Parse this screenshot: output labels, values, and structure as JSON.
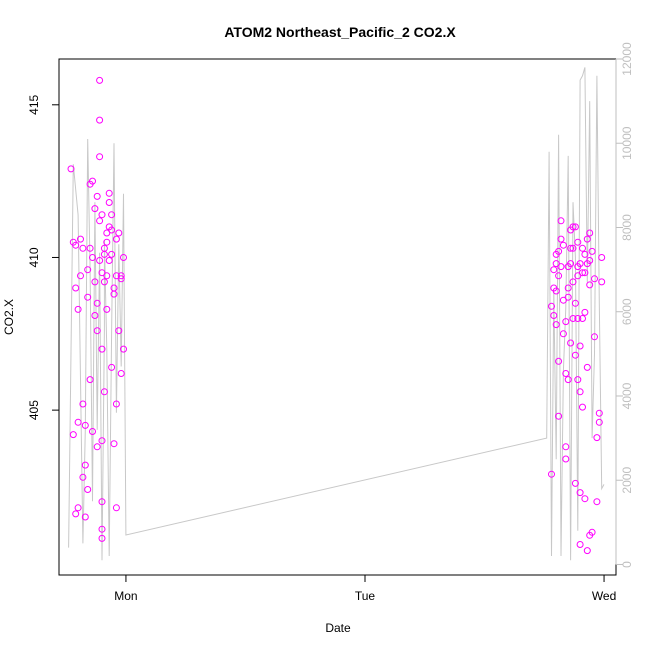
{
  "chart_data": {
    "type": "scatter",
    "title": "ATOM2 Northeast_Pacific_2 CO2.X",
    "xlabel": "Date",
    "ylabel": "CO2.X",
    "x_ticks": [
      "Mon",
      "Tue",
      "Wed"
    ],
    "x_tick_values": [
      1.0,
      2.0,
      3.0
    ],
    "xlim": [
      0.72,
      3.05
    ],
    "ylim": [
      399.6,
      416.5
    ],
    "y_ticks": [
      405,
      410,
      415
    ],
    "y2lim": [
      -250,
      12000
    ],
    "y2_ticks": [
      0,
      2000,
      4000,
      6000,
      8000,
      10000,
      12000
    ],
    "grid": false,
    "legend": "none",
    "colors": {
      "points": "#ff00ff",
      "line": "#c8c8c8"
    },
    "series": [
      {
        "axis": "left",
        "style": "points",
        "x": [
          0.77,
          0.78,
          0.78,
          0.79,
          0.79,
          0.79,
          0.8,
          0.8,
          0.8,
          0.81,
          0.81,
          0.82,
          0.82,
          0.82,
          0.83,
          0.83,
          0.83,
          0.84,
          0.84,
          0.84,
          0.85,
          0.85,
          0.85,
          0.86,
          0.86,
          0.86,
          0.87,
          0.87,
          0.87,
          0.88,
          0.88,
          0.88,
          0.88,
          0.89,
          0.89,
          0.89,
          0.89,
          0.89,
          0.9,
          0.9,
          0.9,
          0.9,
          0.9,
          0.9,
          0.9,
          0.91,
          0.91,
          0.91,
          0.91,
          0.92,
          0.92,
          0.92,
          0.92,
          0.93,
          0.93,
          0.93,
          0.93,
          0.94,
          0.94,
          0.94,
          0.94,
          0.95,
          0.95,
          0.95,
          0.96,
          0.96,
          0.96,
          0.96,
          0.97,
          0.97,
          0.98,
          0.98,
          0.98,
          0.99,
          0.99,
          2.78,
          2.78,
          2.79,
          2.79,
          2.79,
          2.8,
          2.8,
          2.8,
          2.8,
          2.81,
          2.81,
          2.81,
          2.81,
          2.82,
          2.82,
          2.82,
          2.83,
          2.83,
          2.83,
          2.84,
          2.84,
          2.84,
          2.84,
          2.85,
          2.85,
          2.85,
          2.85,
          2.86,
          2.86,
          2.86,
          2.86,
          2.87,
          2.87,
          2.87,
          2.87,
          2.88,
          2.88,
          2.88,
          2.88,
          2.89,
          2.89,
          2.89,
          2.89,
          2.89,
          2.9,
          2.9,
          2.9,
          2.9,
          2.9,
          2.91,
          2.91,
          2.91,
          2.91,
          2.92,
          2.92,
          2.92,
          2.92,
          2.93,
          2.93,
          2.93,
          2.93,
          2.94,
          2.94,
          2.94,
          2.94,
          2.95,
          2.95,
          2.96,
          2.96,
          2.97,
          2.97,
          2.98,
          2.98,
          2.99,
          2.99
        ],
        "y": [
          412.9,
          410.5,
          404.2,
          401.6,
          409.0,
          410.4,
          408.3,
          401.8,
          404.6,
          409.4,
          410.6,
          410.3,
          405.2,
          402.8,
          404.5,
          401.5,
          403.2,
          409.6,
          408.7,
          402.4,
          412.4,
          410.3,
          406.0,
          404.3,
          410.0,
          412.5,
          411.6,
          409.2,
          408.1,
          408.5,
          403.8,
          412.0,
          407.6,
          409.9,
          413.3,
          414.5,
          415.8,
          411.2,
          407.0,
          404.0,
          402.0,
          401.1,
          400.8,
          409.5,
          411.4,
          410.1,
          409.2,
          410.3,
          405.6,
          410.5,
          409.4,
          408.3,
          410.8,
          411.0,
          412.1,
          411.8,
          409.9,
          410.9,
          410.1,
          411.4,
          406.4,
          409.0,
          408.8,
          403.9,
          410.6,
          409.4,
          405.2,
          401.8,
          410.8,
          407.6,
          409.3,
          406.2,
          409.4,
          410.0,
          407.0,
          408.4,
          402.9,
          409.6,
          409.0,
          408.1,
          409.8,
          410.1,
          408.9,
          407.8,
          410.2,
          409.4,
          406.6,
          404.8,
          411.2,
          410.6,
          409.7,
          410.4,
          408.6,
          407.5,
          407.9,
          406.2,
          403.8,
          403.4,
          409.7,
          409.0,
          408.7,
          406.0,
          410.9,
          410.3,
          409.8,
          407.2,
          411.0,
          410.3,
          409.2,
          408.0,
          411.0,
          408.5,
          406.8,
          402.6,
          409.4,
          409.7,
          410.5,
          408.0,
          406.0,
          409.8,
          407.1,
          405.6,
          402.3,
          400.6,
          409.5,
          410.3,
          408.0,
          405.1,
          410.1,
          409.5,
          408.2,
          402.1,
          409.8,
          410.6,
          406.4,
          400.4,
          409.9,
          410.8,
          409.1,
          400.9,
          410.2,
          401.0,
          409.3,
          407.4,
          404.1,
          402.0,
          404.9,
          404.6,
          409.2,
          410.0
        ],
        "name": ""
      },
      {
        "axis": "right",
        "style": "line",
        "x": [
          0.76,
          0.78,
          0.8,
          0.82,
          0.83,
          0.84,
          0.85,
          0.86,
          0.87,
          0.88,
          0.89,
          0.9,
          0.91,
          0.91,
          0.92,
          0.93,
          0.94,
          0.95,
          0.96,
          0.97,
          0.98,
          0.99,
          1.0,
          2.76,
          2.77,
          2.78,
          2.79,
          2.8,
          2.81,
          2.82,
          2.83,
          2.84,
          2.85,
          2.86,
          2.87,
          2.88,
          2.89,
          2.9,
          2.91,
          2.92,
          2.93,
          2.94,
          2.95,
          2.96,
          2.97,
          2.98,
          2.99,
          3.0
        ],
        "y": [
          400,
          9500,
          8300,
          500,
          3200,
          10100,
          7000,
          1500,
          8600,
          3200,
          7400,
          100,
          5600,
          7700,
          5100,
          200,
          5500,
          10000,
          3600,
          7600,
          4700,
          8800,
          700,
          3000,
          9800,
          200,
          6500,
          2500,
          10200,
          200,
          4600,
          6100,
          9700,
          100,
          8600,
          7300,
          800,
          11500,
          11600,
          11800,
          6700,
          11000,
          3000,
          5000,
          11600,
          6200,
          1800,
          1900
        ],
        "name": ""
      }
    ]
  }
}
